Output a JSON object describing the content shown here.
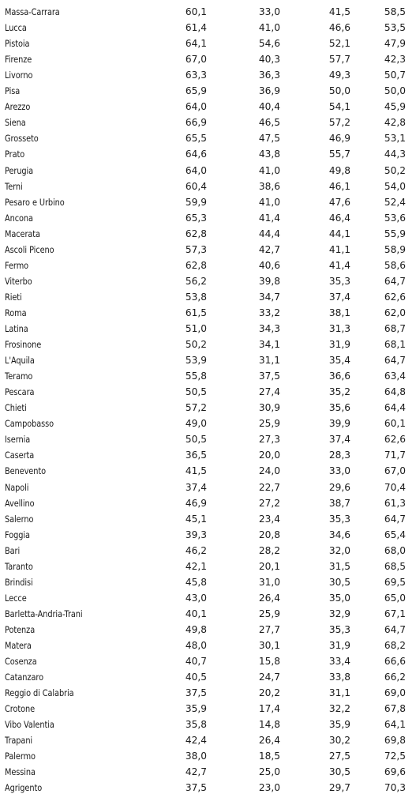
{
  "rows": [
    {
      "name": "Massa-Carrara",
      "v1": "60,1",
      "v2": "33,0",
      "v3": "41,5",
      "v4": "58,5"
    },
    {
      "name": "Lucca",
      "v1": "61,4",
      "v2": "41,0",
      "v3": "46,6",
      "v4": "53,5"
    },
    {
      "name": "Pistoia",
      "v1": "64,1",
      "v2": "54,6",
      "v3": "52,1",
      "v4": "47,9"
    },
    {
      "name": "Firenze",
      "v1": "67,0",
      "v2": "40,3",
      "v3": "57,7",
      "v4": "42,3"
    },
    {
      "name": "Livorno",
      "v1": "63,3",
      "v2": "36,3",
      "v3": "49,3",
      "v4": "50,7"
    },
    {
      "name": "Pisa",
      "v1": "65,9",
      "v2": "36,9",
      "v3": "50,0",
      "v4": "50,0"
    },
    {
      "name": "Arezzo",
      "v1": "64,0",
      "v2": "40,4",
      "v3": "54,1",
      "v4": "45,9"
    },
    {
      "name": "Siena",
      "v1": "66,9",
      "v2": "46,5",
      "v3": "57,2",
      "v4": "42,8"
    },
    {
      "name": "Grosseto",
      "v1": "65,5",
      "v2": "47,5",
      "v3": "46,9",
      "v4": "53,1"
    },
    {
      "name": "Prato",
      "v1": "64,6",
      "v2": "43,8",
      "v3": "55,7",
      "v4": "44,3"
    },
    {
      "name": "Perugia",
      "v1": "64,0",
      "v2": "41,0",
      "v3": "49,8",
      "v4": "50,2"
    },
    {
      "name": "Terni",
      "v1": "60,4",
      "v2": "38,6",
      "v3": "46,1",
      "v4": "54,0"
    },
    {
      "name": "Pesaro e Urbino",
      "v1": "59,9",
      "v2": "41,0",
      "v3": "47,6",
      "v4": "52,4"
    },
    {
      "name": "Ancona",
      "v1": "65,3",
      "v2": "41,4",
      "v3": "46,4",
      "v4": "53,6"
    },
    {
      "name": "Macerata",
      "v1": "62,8",
      "v2": "44,4",
      "v3": "44,1",
      "v4": "55,9"
    },
    {
      "name": "Ascoli Piceno",
      "v1": "57,3",
      "v2": "42,7",
      "v3": "41,1",
      "v4": "58,9"
    },
    {
      "name": "Fermo",
      "v1": "62,8",
      "v2": "40,6",
      "v3": "41,4",
      "v4": "58,6"
    },
    {
      "name": "Viterbo",
      "v1": "56,2",
      "v2": "39,8",
      "v3": "35,3",
      "v4": "64,7"
    },
    {
      "name": "Rieti",
      "v1": "53,8",
      "v2": "34,7",
      "v3": "37,4",
      "v4": "62,6"
    },
    {
      "name": "Roma",
      "v1": "61,5",
      "v2": "33,2",
      "v3": "38,1",
      "v4": "62,0"
    },
    {
      "name": "Latina",
      "v1": "51,0",
      "v2": "34,3",
      "v3": "31,3",
      "v4": "68,7"
    },
    {
      "name": "Frosinone",
      "v1": "50,2",
      "v2": "34,1",
      "v3": "31,9",
      "v4": "68,1"
    },
    {
      "name": "L'Aquila",
      "v1": "53,9",
      "v2": "31,1",
      "v3": "35,4",
      "v4": "64,7"
    },
    {
      "name": "Teramo",
      "v1": "55,8",
      "v2": "37,5",
      "v3": "36,6",
      "v4": "63,4"
    },
    {
      "name": "Pescara",
      "v1": "50,5",
      "v2": "27,4",
      "v3": "35,2",
      "v4": "64,8"
    },
    {
      "name": "Chieti",
      "v1": "57,2",
      "v2": "30,9",
      "v3": "35,6",
      "v4": "64,4"
    },
    {
      "name": "Campobasso",
      "v1": "49,0",
      "v2": "25,9",
      "v3": "39,9",
      "v4": "60,1"
    },
    {
      "name": "Isernia",
      "v1": "50,5",
      "v2": "27,3",
      "v3": "37,4",
      "v4": "62,6"
    },
    {
      "name": "Caserta",
      "v1": "36,5",
      "v2": "20,0",
      "v3": "28,3",
      "v4": "71,7"
    },
    {
      "name": "Benevento",
      "v1": "41,5",
      "v2": "24,0",
      "v3": "33,0",
      "v4": "67,0"
    },
    {
      "name": "Napoli",
      "v1": "37,4",
      "v2": "22,7",
      "v3": "29,6",
      "v4": "70,4"
    },
    {
      "name": "Avellino",
      "v1": "46,9",
      "v2": "27,2",
      "v3": "38,7",
      "v4": "61,3"
    },
    {
      "name": "Salerno",
      "v1": "45,1",
      "v2": "23,4",
      "v3": "35,3",
      "v4": "64,7"
    },
    {
      "name": "Foggia",
      "v1": "39,3",
      "v2": "20,8",
      "v3": "34,6",
      "v4": "65,4"
    },
    {
      "name": "Bari",
      "v1": "46,2",
      "v2": "28,2",
      "v3": "32,0",
      "v4": "68,0"
    },
    {
      "name": "Taranto",
      "v1": "42,1",
      "v2": "20,1",
      "v3": "31,5",
      "v4": "68,5"
    },
    {
      "name": "Brindisi",
      "v1": "45,8",
      "v2": "31,0",
      "v3": "30,5",
      "v4": "69,5"
    },
    {
      "name": "Lecce",
      "v1": "43,0",
      "v2": "26,4",
      "v3": "35,0",
      "v4": "65,0"
    },
    {
      "name": "Barletta-Andria-Trani",
      "v1": "40,1",
      "v2": "25,9",
      "v3": "32,9",
      "v4": "67,1"
    },
    {
      "name": "Potenza",
      "v1": "49,8",
      "v2": "27,7",
      "v3": "35,3",
      "v4": "64,7"
    },
    {
      "name": "Matera",
      "v1": "48,0",
      "v2": "30,1",
      "v3": "31,9",
      "v4": "68,2"
    },
    {
      "name": "Cosenza",
      "v1": "40,7",
      "v2": "15,8",
      "v3": "33,4",
      "v4": "66,6"
    },
    {
      "name": "Catanzaro",
      "v1": "40,5",
      "v2": "24,7",
      "v3": "33,8",
      "v4": "66,2"
    },
    {
      "name": "Reggio di Calabria",
      "v1": "37,5",
      "v2": "20,2",
      "v3": "31,1",
      "v4": "69,0"
    },
    {
      "name": "Crotone",
      "v1": "35,9",
      "v2": "17,4",
      "v3": "32,2",
      "v4": "67,8"
    },
    {
      "name": "Vibo Valentia",
      "v1": "35,8",
      "v2": "14,8",
      "v3": "35,9",
      "v4": "64,1"
    },
    {
      "name": "Trapani",
      "v1": "42,4",
      "v2": "26,4",
      "v3": "30,2",
      "v4": "69,8"
    },
    {
      "name": "Palermo",
      "v1": "38,0",
      "v2": "18,5",
      "v3": "27,5",
      "v4": "72,5"
    },
    {
      "name": "Messina",
      "v1": "42,7",
      "v2": "25,0",
      "v3": "30,5",
      "v4": "69,6"
    },
    {
      "name": "Agrigento",
      "v1": "37,5",
      "v2": "23,0",
      "v3": "29,7",
      "v4": "70,3"
    }
  ]
}
